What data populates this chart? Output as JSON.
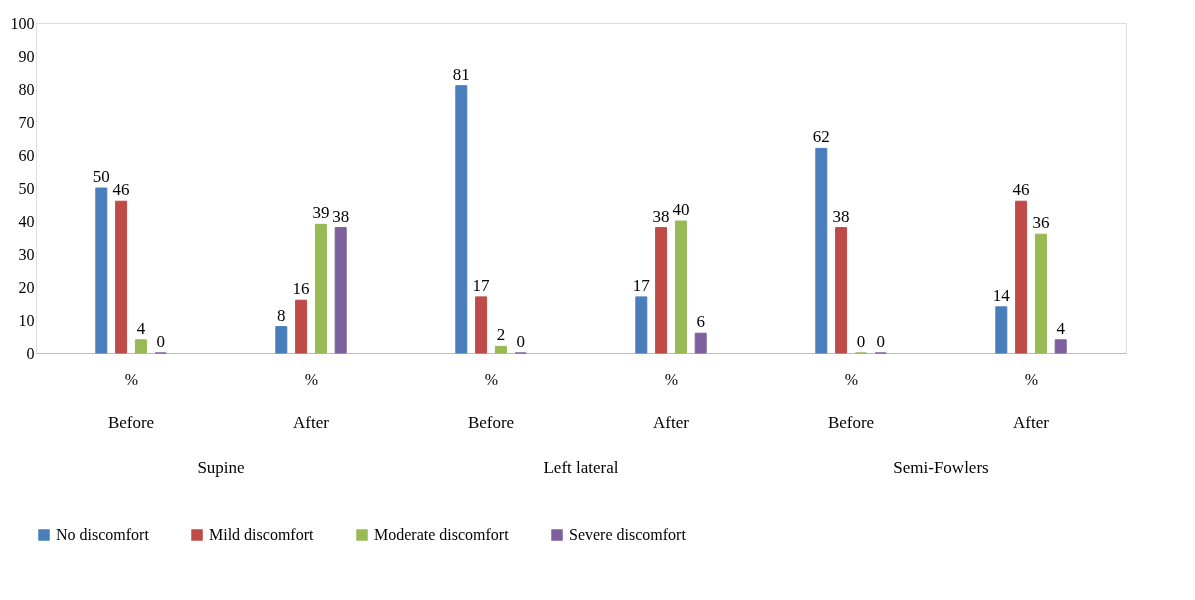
{
  "chart_data": {
    "type": "bar",
    "categories": [
      "%",
      "%",
      "%",
      "%",
      "%",
      "%"
    ],
    "series": [
      {
        "name": "No discomfort",
        "color": "#4a7ebb",
        "values": [
          50,
          8,
          81,
          17,
          62,
          14
        ]
      },
      {
        "name": "Mild discomfort",
        "color": "#be4b48",
        "values": [
          46,
          16,
          17,
          38,
          38,
          46
        ]
      },
      {
        "name": "Moderate discomfort",
        "color": "#98b954",
        "values": [
          4,
          39,
          2,
          40,
          0,
          36
        ]
      },
      {
        "name": "Severe discomfort",
        "color": "#7d60a0",
        "values": [
          0,
          38,
          0,
          6,
          0,
          4
        ]
      }
    ],
    "annotations": [
      "Before",
      "After",
      "Before",
      "After",
      "Before",
      "After",
      "Supine",
      "Left lateral",
      "Semi-Fowlers"
    ],
    "ylim": [
      0,
      100
    ],
    "yticks": [
      0,
      10,
      20,
      30,
      40,
      50,
      60,
      70,
      80,
      90,
      100
    ],
    "data_labels": true,
    "grid": false,
    "legend": "bottom"
  }
}
